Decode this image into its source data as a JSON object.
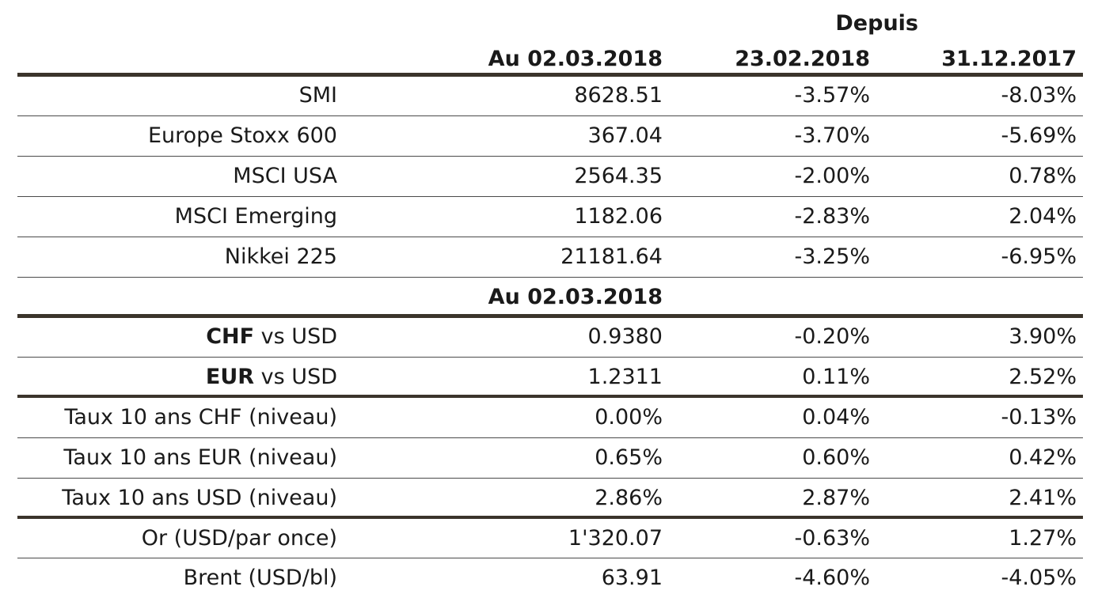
{
  "header": {
    "group_label": "Depuis",
    "col_value": "Au 02.03.2018",
    "col_since_week": "23.02.2018",
    "col_since_year": "31.12.2017"
  },
  "section_header": "Au 02.03.2018",
  "indices": [
    {
      "name": "SMI",
      "value": "8628.51",
      "since_week": "-3.57%",
      "since_year": "-8.03%"
    },
    {
      "name": "Europe Stoxx 600",
      "value": "367.04",
      "since_week": "-3.70%",
      "since_year": "-5.69%"
    },
    {
      "name": "MSCI USA",
      "value": "2564.35",
      "since_week": "-2.00%",
      "since_year": "0.78%"
    },
    {
      "name": "MSCI Emerging",
      "value": "1182.06",
      "since_week": "-2.83%",
      "since_year": "2.04%"
    },
    {
      "name": "Nikkei 225",
      "value": "21181.64",
      "since_week": "-3.25%",
      "since_year": "-6.95%"
    }
  ],
  "currencies": [
    {
      "name_bold": "CHF",
      "name_rest": " vs USD",
      "value": "0.9380",
      "since_week": "-0.20%",
      "since_year": "3.90%"
    },
    {
      "name_bold": "EUR",
      "name_rest": " vs USD",
      "value": "1.2311",
      "since_week": "0.11%",
      "since_year": "2.52%"
    }
  ],
  "rates": [
    {
      "name": "Taux 10 ans CHF (niveau)",
      "value": "0.00%",
      "since_week": "0.04%",
      "since_year": "-0.13%"
    },
    {
      "name": "Taux 10 ans EUR (niveau)",
      "value": "0.65%",
      "since_week": "0.60%",
      "since_year": "0.42%"
    },
    {
      "name": "Taux 10 ans USD (niveau)",
      "value": "2.86%",
      "since_week": "2.87%",
      "since_year": "2.41%"
    }
  ],
  "commodities": [
    {
      "name": "Or (USD/par once)",
      "value": "1'320.07",
      "since_week": "-0.63%",
      "since_year": "1.27%"
    },
    {
      "name": "Brent (USD/bl)",
      "value": "63.91",
      "since_week": "-4.60%",
      "since_year": "-4.05%"
    }
  ]
}
